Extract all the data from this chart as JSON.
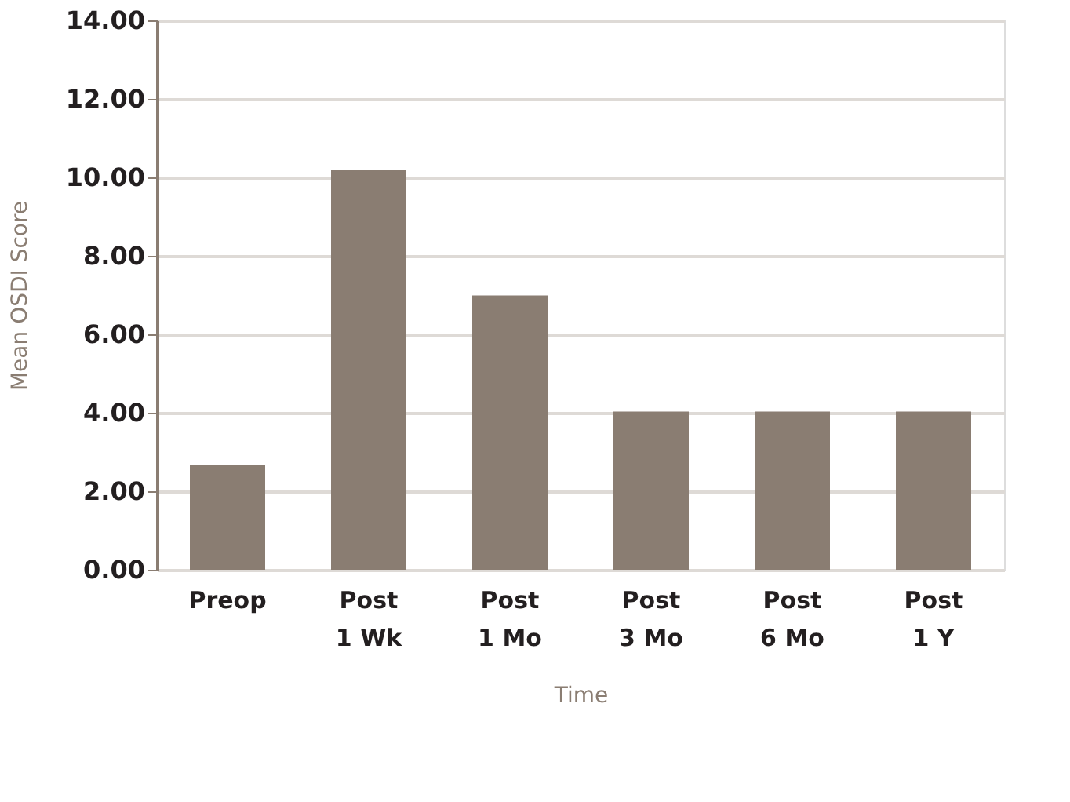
{
  "chart_data": {
    "type": "bar",
    "xlabel": "Time",
    "ylabel": "Mean OSDI Score",
    "categories": [
      "Preop",
      "Post\n1 Wk",
      "Post\n1 Mo",
      "Post\n3 Mo",
      "Post\n6 Mo",
      "Post\n1 Y"
    ],
    "values": [
      2.68,
      10.19,
      6.99,
      4.03,
      4.03,
      4.03
    ],
    "color": "#8a7d72",
    "ylim": [
      0,
      14
    ],
    "yticks": [
      {
        "value": 0,
        "label": "0.00"
      },
      {
        "value": 2,
        "label": "2.00"
      },
      {
        "value": 4,
        "label": "4.00"
      },
      {
        "value": 6,
        "label": "6.00"
      },
      {
        "value": 8,
        "label": "8.00"
      },
      {
        "value": 10,
        "label": "10.00"
      },
      {
        "value": 12,
        "label": "12.00"
      },
      {
        "value": 14,
        "label": "14.00"
      }
    ],
    "grid": "y"
  }
}
